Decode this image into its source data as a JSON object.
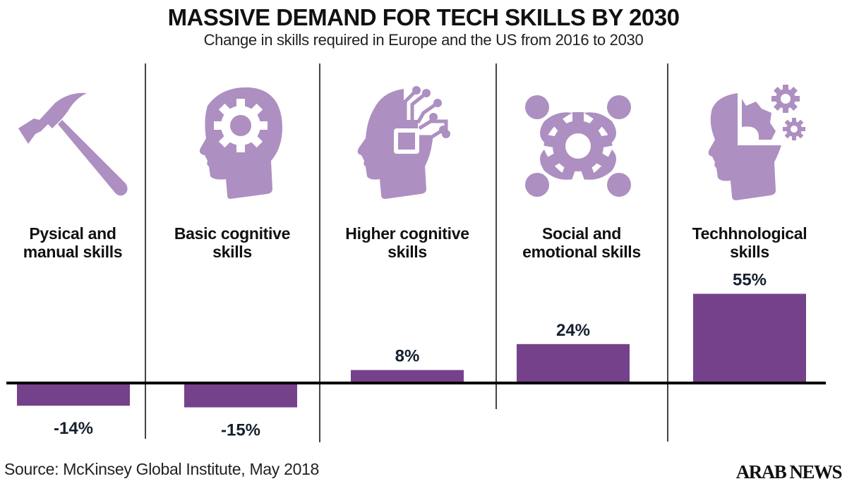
{
  "header": {
    "title": "MASSIVE DEMAND FOR TECH SKILLS BY 2030",
    "subtitle": "Change in skills required in Europe and the US from 2016 to 2030"
  },
  "footer": {
    "source": "Source: McKinsey Global Institute, May 2018",
    "brand": "ARAB NEWS"
  },
  "colors": {
    "bar": "#76418b",
    "icon": "#ad8fc1",
    "label": "#15202e",
    "axis": "#000000"
  },
  "categories": [
    {
      "label_line1": "Pysical and",
      "label_line2": "manual skills",
      "icon": "hammer-icon"
    },
    {
      "label_line1": "Basic cognitive",
      "label_line2": "skills",
      "icon": "head-gear-icon"
    },
    {
      "label_line1": "Higher cognitive",
      "label_line2": "skills",
      "icon": "head-circuit-icon"
    },
    {
      "label_line1": "Social and",
      "label_line2": "emotional skills",
      "icon": "people-gear-icon"
    },
    {
      "label_line1": "Techhnological",
      "label_line2": "skills",
      "icon": "head-gears-icon"
    }
  ],
  "chart_data": {
    "type": "bar",
    "title": "MASSIVE DEMAND FOR TECH SKILLS BY 2030",
    "subtitle": "Change in skills required in Europe and the US from 2016 to 2030",
    "categories": [
      "Pysical and manual skills",
      "Basic cognitive skills",
      "Higher cognitive skills",
      "Social and emotional skills",
      "Techhnological skills"
    ],
    "values": [
      -14,
      -15,
      8,
      24,
      55
    ],
    "data_labels": [
      "-14%",
      "-15%",
      "8%",
      "24%",
      "55%"
    ],
    "xlabel": "",
    "ylabel": "",
    "unit": "%",
    "ylim": [
      -15,
      55
    ],
    "grid": false,
    "legend": "none"
  }
}
